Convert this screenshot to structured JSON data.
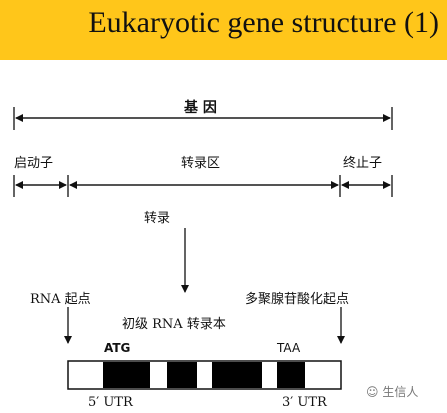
{
  "title": "Eukaryotic gene structure (1)",
  "labels": {
    "gene": "基 因",
    "promoter": "启动子",
    "transcribed_region": "转录区",
    "terminator": "终止子",
    "transcription": "转录",
    "rna_start": "RNA 起点",
    "primary_transcript": "初级 RNA 转录本",
    "polya_site": "多聚腺苷酸化起点",
    "start_codon": "ATG",
    "stop_codon": "TAA",
    "utr5": "5′ UTR",
    "utr3": "3′ UTR"
  },
  "watermark": "生信人",
  "colors": {
    "header": "#ffc61a",
    "exon": "#000000",
    "intron": "#ffffff"
  }
}
